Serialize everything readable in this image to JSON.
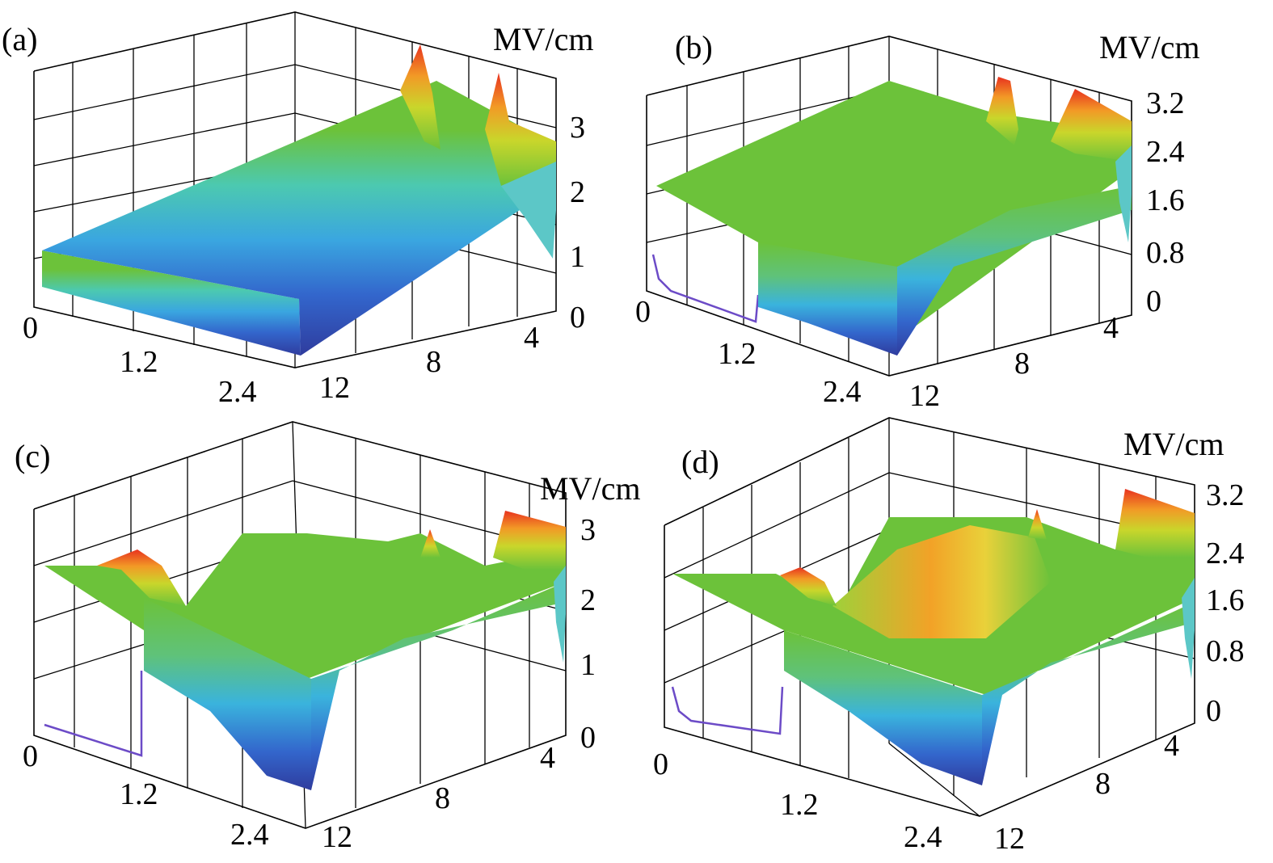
{
  "figure": {
    "panels": [
      {
        "label": "(a)",
        "unit": "MV/cm",
        "z_ticks": [
          "0",
          "1",
          "2",
          "3"
        ],
        "x_ticks": [
          "0",
          "1.2",
          "2.4"
        ],
        "y_ticks": [
          "12",
          "8",
          "4"
        ]
      },
      {
        "label": "(b)",
        "unit": "MV/cm",
        "z_ticks": [
          "0",
          "0.8",
          "1.6",
          "2.4",
          "3.2"
        ],
        "x_ticks": [
          "0",
          "1.2",
          "2.4"
        ],
        "y_ticks": [
          "12",
          "8",
          "4"
        ]
      },
      {
        "label": "(c)",
        "unit": "MV/cm",
        "z_ticks": [
          "0",
          "1",
          "2",
          "3"
        ],
        "x_ticks": [
          "0",
          "1.2",
          "2.4"
        ],
        "y_ticks": [
          "12",
          "8",
          "4"
        ]
      },
      {
        "label": "(d)",
        "unit": "MV/cm",
        "z_ticks": [
          "0",
          "0.8",
          "1.6",
          "2.4",
          "3.2"
        ],
        "x_ticks": [
          "0",
          "1.2",
          "2.4"
        ],
        "y_ticks": [
          "12",
          "8",
          "4"
        ]
      }
    ]
  },
  "chart_data": [
    {
      "type": "surface3d",
      "panel": "(a)",
      "zlabel": "MV/cm",
      "x_ticks": [
        0,
        1.2,
        2.4
      ],
      "y_ticks": [
        12,
        8,
        4
      ],
      "z_ticks": [
        0,
        1,
        2,
        3
      ],
      "zlim": [
        0,
        3.5
      ],
      "colormap": "jet",
      "grid": true,
      "features": {
        "plateau_front": 0.9,
        "plateau_back": 2.5,
        "peaks": [
          3.5,
          3.4
        ]
      }
    },
    {
      "type": "surface3d",
      "panel": "(b)",
      "zlabel": "MV/cm",
      "x_ticks": [
        0,
        1.2,
        2.4
      ],
      "y_ticks": [
        12,
        8,
        4
      ],
      "z_ticks": [
        0,
        0.8,
        1.6,
        2.4,
        3.2
      ],
      "zlim": [
        0,
        3.2
      ],
      "colormap": "jet",
      "grid": true,
      "features": {
        "plateau": 2.1,
        "edge_peak": 3.0
      }
    },
    {
      "type": "surface3d",
      "panel": "(c)",
      "zlabel": "MV/cm",
      "x_ticks": [
        0,
        1.2,
        2.4
      ],
      "y_ticks": [
        12,
        8,
        4
      ],
      "z_ticks": [
        0,
        1,
        2,
        3
      ],
      "zlim": [
        0,
        3.2
      ],
      "colormap": "jet",
      "grid": true,
      "features": {
        "plateau": 2.2,
        "edge_peak": 3.0,
        "local_peak": 2.9
      }
    },
    {
      "type": "surface3d",
      "panel": "(d)",
      "zlabel": "MV/cm",
      "x_ticks": [
        0,
        1.2,
        2.4
      ],
      "y_ticks": [
        12,
        8,
        4
      ],
      "z_ticks": [
        0,
        0.8,
        1.6,
        2.4,
        3.2
      ],
      "zlim": [
        0,
        3.2
      ],
      "colormap": "jet",
      "grid": true,
      "features": {
        "plateau": 2.1,
        "ridge_peak": 2.7,
        "edge_peak": 3.1
      }
    }
  ]
}
